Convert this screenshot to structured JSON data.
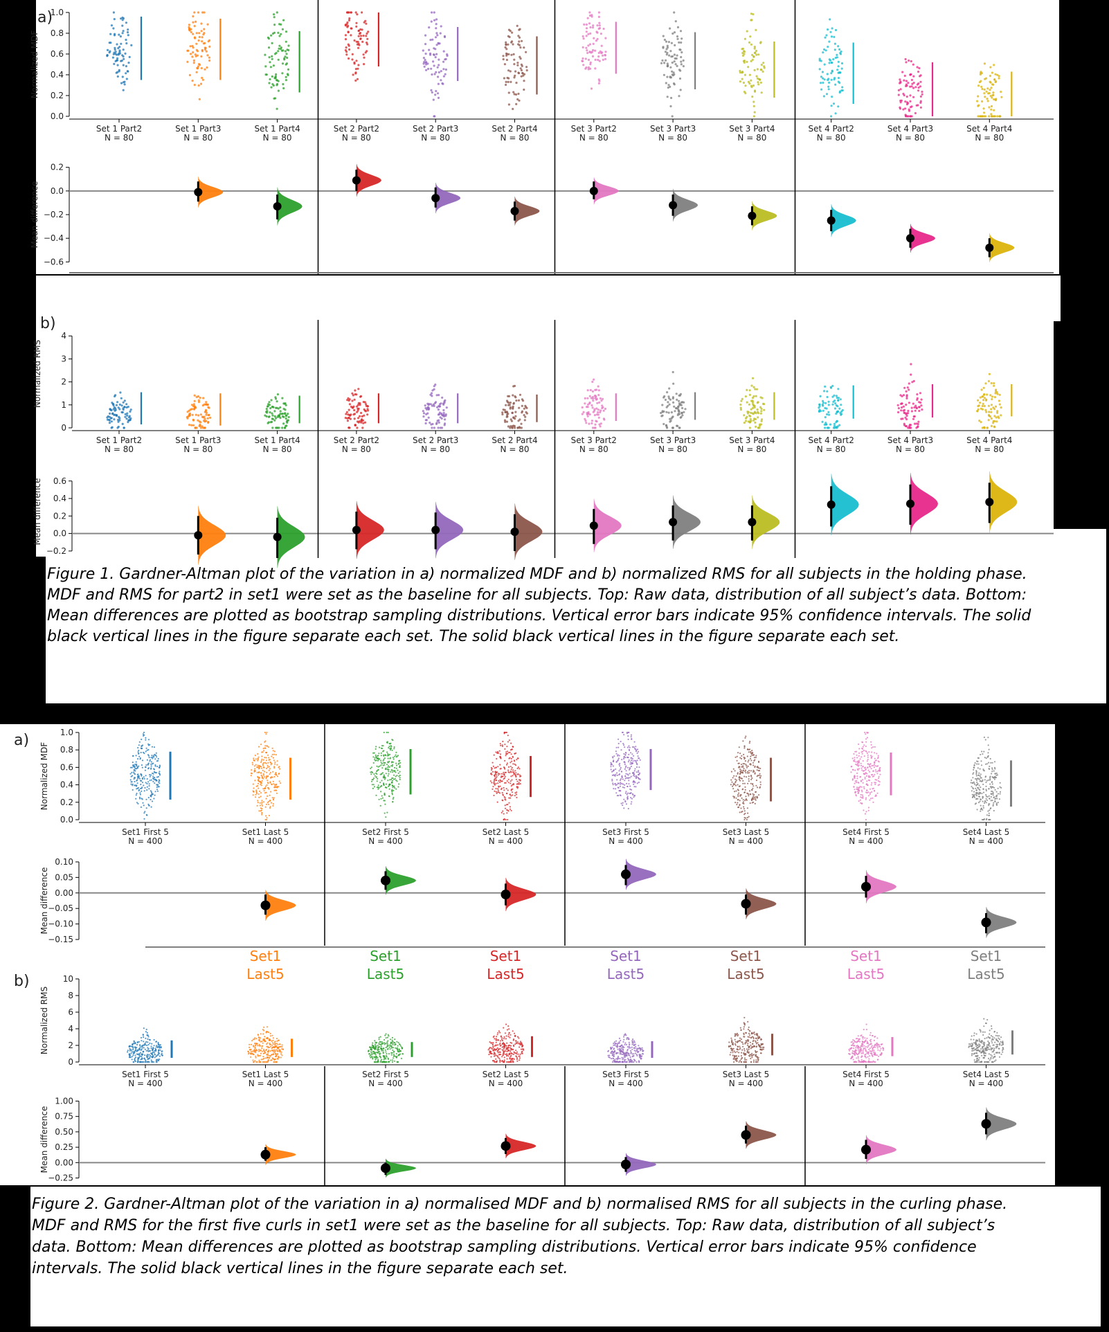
{
  "fig1": {
    "panel_a_label": "a)",
    "panel_b_label": "b)",
    "caption_lines": [
      "Figure 1. Gardner-Altman plot of the variation in a) normalized MDF and b) normalized RMS for all subjects in the holding phase.",
      "MDF and RMS for part2 in set1 were set as the baseline for all subjects. Top: Raw data, distribution of all subject’s data. Bottom:",
      "Mean differences are plotted as bootstrap sampling distributions. Vertical error bars indicate 95% confidence intervals. The solid",
      "black vertical lines in the figure separate each set. The solid black vertical lines in the figure separate each set."
    ],
    "categories": [
      "Set 1 Part2",
      "Set 1 Part3",
      "Set 1 Part4",
      "Set 2 Part2",
      "Set 2 Part3",
      "Set 2 Part4",
      "Set 3 Part2",
      "Set 3 Part3",
      "Set 3 Part4",
      "Set 4 Part2",
      "Set 4 Part3",
      "Set 4 Part4"
    ],
    "n_label": "N = 80"
  },
  "fig2": {
    "panel_a_label": "a)",
    "panel_b_label": "b)",
    "caption_lines": [
      "Figure 2. Gardner-Altman plot of the variation in a) normalised MDF and b) normalised RMS for all subjects in the curling phase.",
      "MDF and RMS for the first five curls in set1 were set as the baseline for all subjects. Top: Raw data, distribution of all subject’s",
      "data. Bottom: Mean differences are plotted as bootstrap sampling distributions. Vertical error bars indicate 95% confidence",
      "intervals. The solid black vertical lines in the figure separate each set."
    ],
    "categories": [
      "Set1 First 5",
      "Set1 Last 5",
      "Set2 First 5",
      "Set2 Last 5",
      "Set3 First 5",
      "Set3 Last 5",
      "Set4 First 5",
      "Set4 Last 5"
    ],
    "n_label": "N = 400",
    "stray_labels": [
      {
        "line1": "Set1",
        "line2": "Last5",
        "color": "#ff7f0e"
      },
      {
        "line1": "Set1",
        "line2": "Last5",
        "color": "#2ca02c"
      },
      {
        "line1": "Set1",
        "line2": "Last5",
        "color": "#d62728"
      },
      {
        "line1": "Set1",
        "line2": "Last5",
        "color": "#9467bd"
      },
      {
        "line1": "Set1",
        "line2": "Last5",
        "color": "#8c564b"
      },
      {
        "line1": "Set1",
        "line2": "Last5",
        "color": "#e377c2"
      },
      {
        "line1": "Set1",
        "line2": "Last5",
        "color": "#7f7f7f"
      }
    ]
  },
  "colors": {
    "fig1": [
      "#1f77b4",
      "#ff7f0e",
      "#2ca02c",
      "#d62728",
      "#9467bd",
      "#8c564b",
      "#e377c2",
      "#7f7f7f",
      "#bcbd22",
      "#17becf",
      "#e7298a",
      "#dbb40c"
    ],
    "fig2": [
      "#1f77b4",
      "#ff7f0e",
      "#2ca02c",
      "#d62728",
      "#9467bd",
      "#8c564b",
      "#e377c2",
      "#7f7f7f"
    ]
  },
  "chart_data": [
    {
      "id": "fig1a-raw",
      "type": "scatter",
      "subtype": "swarm",
      "ylabel": "Normalized MDF",
      "ylim": [
        0,
        1.0
      ],
      "yticks": [
        0.0,
        0.2,
        0.4,
        0.6,
        0.8,
        1.0
      ],
      "categories": [
        "Set 1 Part2",
        "Set 1 Part3",
        "Set 1 Part4",
        "Set 2 Part2",
        "Set 2 Part3",
        "Set 2 Part4",
        "Set 3 Part2",
        "Set 3 Part3",
        "Set 3 Part4",
        "Set 4 Part2",
        "Set 4 Part3",
        "Set 4 Part4"
      ],
      "n": 80,
      "series_center": [
        0.65,
        0.65,
        0.55,
        0.78,
        0.6,
        0.48,
        0.65,
        0.55,
        0.45,
        0.4,
        0.25,
        0.15
      ],
      "series_spread": [
        0.2,
        0.2,
        0.22,
        0.18,
        0.2,
        0.2,
        0.2,
        0.2,
        0.2,
        0.22,
        0.18,
        0.2
      ],
      "gap_line": [
        [
          0.35,
          0.96
        ],
        [
          0.35,
          0.94
        ],
        [
          0.23,
          0.82
        ],
        [
          0.48,
          1.0
        ],
        [
          0.34,
          0.86
        ],
        [
          0.21,
          0.77
        ],
        [
          0.41,
          0.91
        ],
        [
          0.26,
          0.81
        ],
        [
          0.18,
          0.72
        ],
        [
          0.12,
          0.71
        ],
        [
          0.0,
          0.52
        ],
        [
          0.0,
          0.43
        ]
      ]
    },
    {
      "id": "fig1a-diff",
      "type": "scatter",
      "subtype": "bootstrap-mean-difference",
      "ylabel": "Mean difference",
      "ylim": [
        -0.68,
        0.28
      ],
      "yticks": [
        -0.6,
        -0.4,
        -0.2,
        0.0,
        0.2
      ],
      "means": [
        null,
        -0.01,
        -0.13,
        0.09,
        -0.06,
        -0.17,
        0.0,
        -0.12,
        -0.21,
        -0.25,
        -0.4,
        -0.48
      ],
      "ci": [
        null,
        [
          -0.09,
          0.08
        ],
        [
          -0.24,
          -0.03
        ],
        [
          0.0,
          0.18
        ],
        [
          -0.14,
          0.03
        ],
        [
          -0.25,
          -0.09
        ],
        [
          -0.07,
          0.08
        ],
        [
          -0.21,
          -0.03
        ],
        [
          -0.29,
          -0.13
        ],
        [
          -0.34,
          -0.16
        ],
        [
          -0.48,
          -0.32
        ],
        [
          -0.56,
          -0.4
        ]
      ]
    },
    {
      "id": "fig1b-raw",
      "type": "scatter",
      "subtype": "swarm",
      "ylabel": "Normalized RMS",
      "ylim": [
        0,
        4.7
      ],
      "yticks": [
        0,
        1,
        2,
        3,
        4
      ],
      "categories": [
        "Set 1 Part2",
        "Set 1 Part3",
        "Set 1 Part4",
        "Set 2 Part2",
        "Set 2 Part3",
        "Set 2 Part4",
        "Set 3 Part2",
        "Set 3 Part3",
        "Set 3 Part4",
        "Set 4 Part2",
        "Set 4 Part3",
        "Set 4 Part4"
      ],
      "n": 80,
      "series_center": [
        0.6,
        0.6,
        0.6,
        0.7,
        0.7,
        0.7,
        0.8,
        0.8,
        0.8,
        0.9,
        0.9,
        0.9
      ],
      "series_spread": [
        0.4,
        0.4,
        0.4,
        0.45,
        0.45,
        0.45,
        0.5,
        0.5,
        0.5,
        0.55,
        0.55,
        0.55
      ],
      "gap_line": [
        [
          0.15,
          1.55
        ],
        [
          0.1,
          1.5
        ],
        [
          0.2,
          1.4
        ],
        [
          0.2,
          1.5
        ],
        [
          0.2,
          1.5
        ],
        [
          0.25,
          1.45
        ],
        [
          0.3,
          1.5
        ],
        [
          0.35,
          1.55
        ],
        [
          0.35,
          1.55
        ],
        [
          0.4,
          1.85
        ],
        [
          0.45,
          1.9
        ],
        [
          0.5,
          1.9
        ]
      ]
    },
    {
      "id": "fig1b-diff",
      "type": "scatter",
      "subtype": "bootstrap-mean-difference",
      "ylabel": "Mean difference",
      "ylim": [
        -0.28,
        0.78
      ],
      "yticks": [
        -0.2,
        0.0,
        0.2,
        0.4,
        0.6
      ],
      "means": [
        null,
        -0.02,
        -0.04,
        0.04,
        0.04,
        0.02,
        0.09,
        0.13,
        0.13,
        0.33,
        0.34,
        0.36
      ],
      "ci": [
        null,
        [
          -0.24,
          0.2
        ],
        [
          -0.28,
          0.18
        ],
        [
          -0.18,
          0.25
        ],
        [
          -0.18,
          0.24
        ],
        [
          -0.2,
          0.22
        ],
        [
          -0.12,
          0.28
        ],
        [
          -0.08,
          0.32
        ],
        [
          -0.08,
          0.32
        ],
        [
          0.08,
          0.54
        ],
        [
          0.1,
          0.56
        ],
        [
          0.12,
          0.58
        ]
      ]
    },
    {
      "id": "fig2a-raw",
      "type": "scatter",
      "subtype": "swarm",
      "ylabel": "Normalized MDF",
      "ylim": [
        0,
        1.0
      ],
      "yticks": [
        0.0,
        0.2,
        0.4,
        0.6,
        0.8,
        1.0
      ],
      "categories": [
        "Set1 First 5",
        "Set1 Last 5",
        "Set2 First 5",
        "Set2 Last 5",
        "Set3 First 5",
        "Set3 Last 5",
        "Set4 First 5",
        "Set4 Last 5"
      ],
      "n": 400,
      "series_center": [
        0.52,
        0.48,
        0.56,
        0.5,
        0.58,
        0.47,
        0.54,
        0.4
      ],
      "series_spread": [
        0.2,
        0.2,
        0.2,
        0.2,
        0.2,
        0.2,
        0.2,
        0.2
      ],
      "gap_line": [
        [
          0.23,
          0.78
        ],
        [
          0.23,
          0.71
        ],
        [
          0.29,
          0.81
        ],
        [
          0.26,
          0.73
        ],
        [
          0.34,
          0.81
        ],
        [
          0.21,
          0.71
        ],
        [
          0.28,
          0.77
        ],
        [
          0.15,
          0.68
        ]
      ]
    },
    {
      "id": "fig2a-diff",
      "type": "scatter",
      "subtype": "bootstrap-mean-difference",
      "ylabel": "Mean difference",
      "ylim": [
        -0.17,
        0.12
      ],
      "yticks": [
        -0.15,
        -0.1,
        -0.05,
        0.0,
        0.05,
        0.1
      ],
      "means": [
        null,
        -0.04,
        0.04,
        -0.005,
        0.06,
        -0.035,
        0.02,
        -0.095
      ],
      "ci": [
        null,
        [
          -0.07,
          -0.005
        ],
        [
          0.01,
          0.07
        ],
        [
          -0.04,
          0.03
        ],
        [
          0.025,
          0.09
        ],
        [
          -0.07,
          -0.005
        ],
        [
          -0.015,
          0.055
        ],
        [
          -0.13,
          -0.065
        ]
      ]
    },
    {
      "id": "fig2b-raw",
      "type": "scatter",
      "subtype": "swarm",
      "ylabel": "Normalized RMS",
      "ylim": [
        0,
        10
      ],
      "yticks": [
        0,
        2,
        4,
        6,
        8,
        10
      ],
      "categories": [
        "Set1 First 5",
        "Set1 Last 5",
        "Set2 First 5",
        "Set2 Last 5",
        "Set3 First 5",
        "Set3 Last 5",
        "Set4 First 5",
        "Set4 Last 5"
      ],
      "n": 400,
      "series_center": [
        1.2,
        1.4,
        1.2,
        1.6,
        1.1,
        1.7,
        1.4,
        1.8
      ],
      "series_spread": [
        0.9,
        1.0,
        0.9,
        1.1,
        0.9,
        1.2,
        1.0,
        1.2
      ],
      "gap_line": [
        [
          0.5,
          2.6
        ],
        [
          0.6,
          2.8
        ],
        [
          0.6,
          2.4
        ],
        [
          0.6,
          3.1
        ],
        [
          0.5,
          2.5
        ],
        [
          0.8,
          3.4
        ],
        [
          0.7,
          3.0
        ],
        [
          0.9,
          3.8
        ]
      ]
    },
    {
      "id": "fig2b-diff",
      "type": "scatter",
      "subtype": "bootstrap-mean-difference",
      "ylabel": "Mean difference",
      "ylim": [
        -0.3,
        1.05
      ],
      "yticks": [
        -0.25,
        0.0,
        0.25,
        0.5,
        0.75,
        1.0
      ],
      "means": [
        null,
        0.13,
        -0.09,
        0.27,
        -0.03,
        0.45,
        0.21,
        0.63
      ],
      "ci": [
        null,
        [
          0.03,
          0.25
        ],
        [
          -0.2,
          0.0
        ],
        [
          0.14,
          0.4
        ],
        [
          -0.15,
          0.09
        ],
        [
          0.31,
          0.6
        ],
        [
          0.06,
          0.37
        ],
        [
          0.46,
          0.81
        ]
      ]
    }
  ]
}
